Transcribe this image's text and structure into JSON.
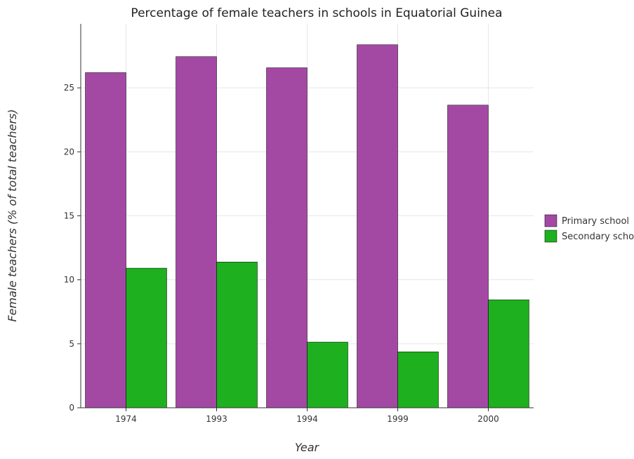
{
  "chart_data": {
    "type": "bar",
    "title": "Percentage of female teachers in schools in Equatorial Guinea",
    "xlabel": "Year",
    "ylabel": "Female teachers (% of total teachers)",
    "categories": [
      "1974",
      "1993",
      "1994",
      "1999",
      "2000"
    ],
    "series": [
      {
        "name": "Primary school",
        "color": "#a349a4",
        "values": [
          26.19,
          27.44,
          26.57,
          28.37,
          23.65
        ]
      },
      {
        "name": "Secondary school",
        "color": "#1eb01e",
        "values": [
          10.91,
          11.39,
          5.13,
          4.37,
          8.44
        ]
      }
    ],
    "ylim": [
      0,
      30
    ],
    "yticks": [
      0,
      5,
      10,
      15,
      20,
      25
    ],
    "grid": true,
    "legend_position": "right"
  }
}
